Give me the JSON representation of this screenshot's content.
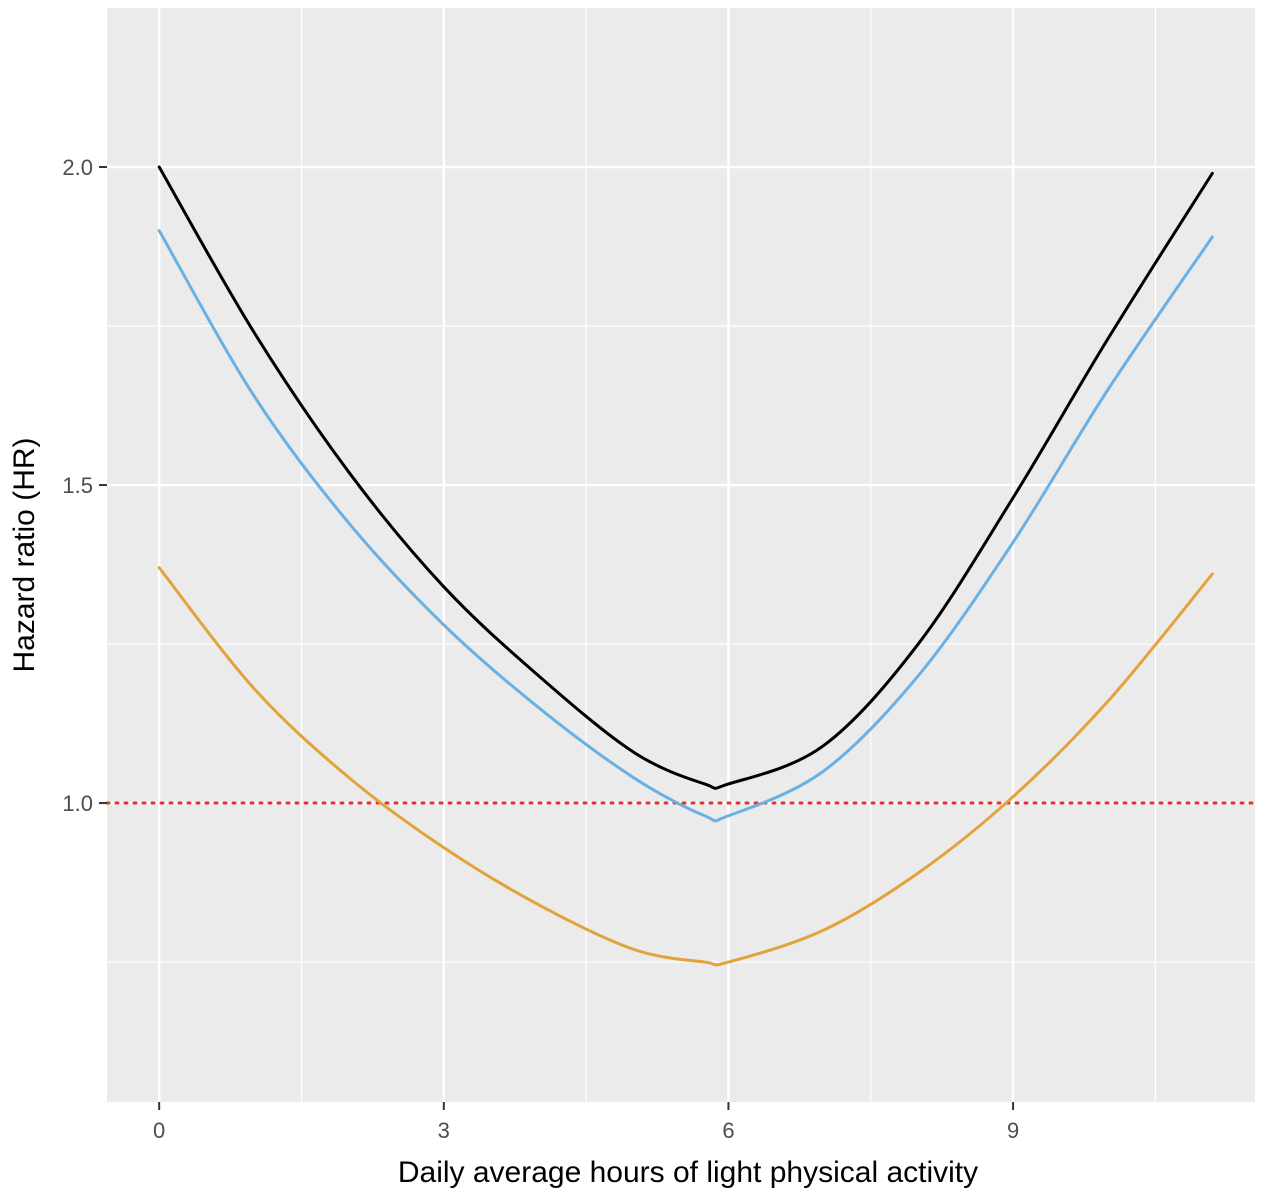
{
  "chart_data": {
    "type": "line",
    "title": "",
    "xlabel": "Daily average hours of light physical activity",
    "ylabel": "Hazard ratio (HR)",
    "xlim": [
      -0.55,
      11.55
    ],
    "ylim": [
      0.53,
      2.25
    ],
    "x_ticks": [
      0,
      3,
      6,
      9
    ],
    "x_tick_labels": [
      "0",
      "3",
      "6",
      "9"
    ],
    "y_ticks": [
      1.0,
      1.5,
      2.0
    ],
    "y_tick_labels": [
      "1.0",
      "1.5",
      "2.0"
    ],
    "grid": true,
    "legend": "none",
    "background_color": "#ebebeb",
    "grid_color": "#ffffff",
    "series": [
      {
        "color": "#000000",
        "x": [
          0,
          1,
          2,
          3,
          4,
          5,
          5.75,
          6,
          7,
          8,
          9,
          10,
          11.1
        ],
        "y": [
          2.0,
          1.74,
          1.52,
          1.34,
          1.2,
          1.08,
          1.03,
          1.03,
          1.09,
          1.25,
          1.48,
          1.73,
          1.99
        ]
      },
      {
        "color": "#6ab0e4",
        "x": [
          0,
          1,
          2,
          3,
          4,
          5,
          5.75,
          6,
          7,
          8,
          9,
          10,
          11.1
        ],
        "y": [
          1.9,
          1.64,
          1.44,
          1.28,
          1.15,
          1.04,
          0.98,
          0.98,
          1.05,
          1.2,
          1.41,
          1.65,
          1.89
        ]
      },
      {
        "color": "#e2a33a",
        "x": [
          0,
          1,
          2,
          3,
          4,
          5,
          5.75,
          6,
          7,
          8,
          9,
          10,
          11.1
        ],
        "y": [
          1.37,
          1.18,
          1.04,
          0.93,
          0.84,
          0.77,
          0.75,
          0.75,
          0.8,
          0.89,
          1.01,
          1.16,
          1.36
        ]
      }
    ],
    "reference_line": {
      "y": 1.0,
      "style": "dotted",
      "color": "#e0342c"
    }
  }
}
